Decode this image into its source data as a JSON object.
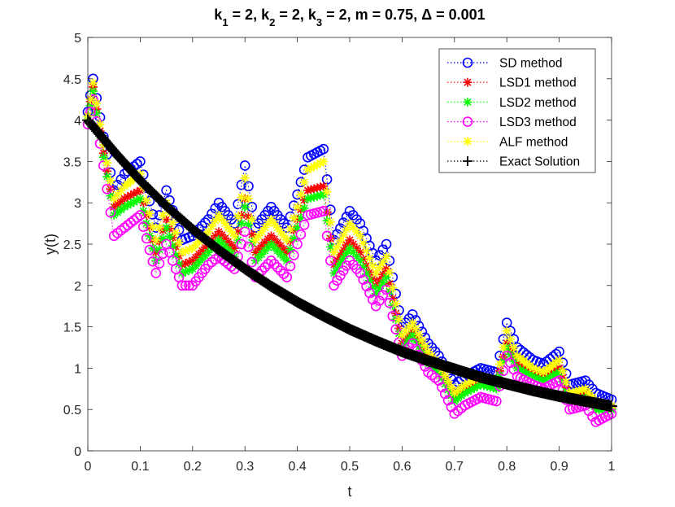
{
  "chart_data": {
    "type": "line",
    "title": {
      "parts": [
        {
          "text": "k",
          "sub": false
        },
        {
          "text": "1",
          "sub": true
        },
        {
          "text": " = 2, k",
          "sub": false
        },
        {
          "text": "2",
          "sub": true
        },
        {
          "text": " = 2, k",
          "sub": false
        },
        {
          "text": "3",
          "sub": true
        },
        {
          "text": " = 2, m = 0.75, Δ = 0.001",
          "sub": false
        }
      ]
    },
    "xlabel": "t",
    "ylabel": "y(t)",
    "xlim": [
      0,
      1
    ],
    "ylim": [
      0,
      5
    ],
    "xticks": [
      0,
      0.1,
      0.2,
      0.3,
      0.4,
      0.5,
      0.6,
      0.7,
      0.8,
      0.9,
      1
    ],
    "xtick_labels": [
      "0",
      "0.1",
      "0.2",
      "0.3",
      "0.4",
      "0.5",
      "0.6",
      "0.7",
      "0.8",
      "0.9",
      "1"
    ],
    "yticks": [
      0,
      0.5,
      1,
      1.5,
      2,
      2.5,
      3,
      3.5,
      4,
      4.5,
      5
    ],
    "ytick_labels": [
      "0",
      "0.5",
      "1",
      "1.5",
      "2",
      "2.5",
      "3",
      "3.5",
      "4",
      "4.5",
      "5"
    ],
    "legend_position": "top-right",
    "series": [
      {
        "name": "SD method",
        "color": "#0000ff",
        "marker": "circle",
        "x": [
          0,
          0.01,
          0.03,
          0.05,
          0.07,
          0.1,
          0.13,
          0.15,
          0.18,
          0.2,
          0.23,
          0.25,
          0.28,
          0.3,
          0.32,
          0.35,
          0.38,
          0.4,
          0.42,
          0.45,
          0.47,
          0.5,
          0.52,
          0.55,
          0.57,
          0.6,
          0.62,
          0.65,
          0.67,
          0.7,
          0.72,
          0.75,
          0.78,
          0.8,
          0.82,
          0.85,
          0.87,
          0.9,
          0.92,
          0.95,
          0.97,
          1
        ],
        "y": [
          4.1,
          4.5,
          3.8,
          3.15,
          3.35,
          3.5,
          2.7,
          3.15,
          2.55,
          2.6,
          2.8,
          3.0,
          2.75,
          3.45,
          2.7,
          2.95,
          2.7,
          3.1,
          3.55,
          3.65,
          2.55,
          2.9,
          2.75,
          2.3,
          2.5,
          1.5,
          1.65,
          1.3,
          1.15,
          0.8,
          0.9,
          1.0,
          0.95,
          1.55,
          1.25,
          1.1,
          1.05,
          1.2,
          0.8,
          0.85,
          0.7,
          0.62
        ]
      },
      {
        "name": "LSD1 method",
        "color": "#ff0000",
        "marker": "star",
        "x": [
          0,
          0.01,
          0.03,
          0.05,
          0.07,
          0.1,
          0.13,
          0.15,
          0.18,
          0.2,
          0.23,
          0.25,
          0.28,
          0.3,
          0.32,
          0.35,
          0.38,
          0.4,
          0.42,
          0.45,
          0.47,
          0.5,
          0.52,
          0.55,
          0.57,
          0.6,
          0.62,
          0.65,
          0.67,
          0.7,
          0.72,
          0.75,
          0.78,
          0.8,
          0.82,
          0.85,
          0.87,
          0.9,
          0.92,
          0.95,
          0.97,
          1
        ],
        "y": [
          4.05,
          4.4,
          3.6,
          2.95,
          3.05,
          3.15,
          2.4,
          2.8,
          2.25,
          2.3,
          2.5,
          2.65,
          2.45,
          3.05,
          2.4,
          2.6,
          2.4,
          2.8,
          3.15,
          3.2,
          2.25,
          2.55,
          2.4,
          2.0,
          2.2,
          1.3,
          1.45,
          1.1,
          1.0,
          0.65,
          0.75,
          0.85,
          0.8,
          1.3,
          1.05,
          0.95,
          0.9,
          1.0,
          0.65,
          0.7,
          0.55,
          0.52
        ]
      },
      {
        "name": "LSD2 method",
        "color": "#00ff00",
        "marker": "star",
        "x": [
          0,
          0.01,
          0.03,
          0.05,
          0.07,
          0.1,
          0.13,
          0.15,
          0.18,
          0.2,
          0.23,
          0.25,
          0.28,
          0.3,
          0.32,
          0.35,
          0.38,
          0.4,
          0.42,
          0.45,
          0.47,
          0.5,
          0.52,
          0.55,
          0.57,
          0.6,
          0.62,
          0.65,
          0.67,
          0.7,
          0.72,
          0.75,
          0.78,
          0.8,
          0.82,
          0.85,
          0.87,
          0.9,
          0.92,
          0.95,
          0.97,
          1
        ],
        "y": [
          4.0,
          4.35,
          3.55,
          2.85,
          2.95,
          3.05,
          2.3,
          2.7,
          2.15,
          2.2,
          2.4,
          2.55,
          2.35,
          2.95,
          2.3,
          2.5,
          2.3,
          2.7,
          3.05,
          3.1,
          2.15,
          2.45,
          2.3,
          1.9,
          2.1,
          1.25,
          1.4,
          1.05,
          0.95,
          0.6,
          0.7,
          0.8,
          0.75,
          1.25,
          1.0,
          0.9,
          0.85,
          0.95,
          0.6,
          0.65,
          0.5,
          0.5
        ]
      },
      {
        "name": "LSD3 method",
        "color": "#ff00ff",
        "marker": "circle",
        "x": [
          0,
          0.01,
          0.03,
          0.05,
          0.07,
          0.1,
          0.13,
          0.15,
          0.18,
          0.2,
          0.23,
          0.25,
          0.28,
          0.3,
          0.32,
          0.35,
          0.38,
          0.4,
          0.42,
          0.45,
          0.47,
          0.5,
          0.52,
          0.55,
          0.57,
          0.6,
          0.62,
          0.65,
          0.67,
          0.7,
          0.72,
          0.75,
          0.78,
          0.8,
          0.82,
          0.85,
          0.87,
          0.9,
          0.92,
          0.95,
          0.97,
          1
        ],
        "y": [
          3.95,
          4.25,
          3.45,
          2.6,
          2.7,
          2.85,
          2.15,
          2.5,
          2.0,
          2.0,
          2.25,
          2.35,
          2.2,
          2.65,
          2.1,
          2.3,
          2.1,
          2.5,
          2.85,
          2.9,
          2.0,
          2.3,
          2.15,
          1.75,
          1.95,
          1.15,
          1.3,
          0.95,
          0.85,
          0.45,
          0.55,
          0.65,
          0.6,
          1.15,
          0.9,
          0.8,
          0.75,
          0.85,
          0.5,
          0.55,
          0.35,
          0.45
        ]
      },
      {
        "name": "ALF method",
        "color": "#ffff00",
        "marker": "star",
        "x": [
          0,
          0.01,
          0.03,
          0.05,
          0.07,
          0.1,
          0.13,
          0.15,
          0.18,
          0.2,
          0.23,
          0.25,
          0.28,
          0.3,
          0.32,
          0.35,
          0.38,
          0.4,
          0.42,
          0.45,
          0.47,
          0.5,
          0.52,
          0.55,
          0.57,
          0.6,
          0.62,
          0.65,
          0.67,
          0.7,
          0.72,
          0.75,
          0.78,
          0.8,
          0.82,
          0.85,
          0.87,
          0.9,
          0.92,
          0.95,
          0.97,
          1
        ],
        "y": [
          4.05,
          4.45,
          3.7,
          3.05,
          3.2,
          3.35,
          2.55,
          3.0,
          2.4,
          2.45,
          2.65,
          2.85,
          2.6,
          3.3,
          2.55,
          2.8,
          2.55,
          2.95,
          3.4,
          3.5,
          2.4,
          2.75,
          2.6,
          2.15,
          2.35,
          1.4,
          1.55,
          1.2,
          1.05,
          0.7,
          0.8,
          0.9,
          0.85,
          1.45,
          1.15,
          1.0,
          0.95,
          1.1,
          0.7,
          0.75,
          0.6,
          0.55
        ]
      },
      {
        "name": "Exact Solution",
        "color": "#000000",
        "marker": "plus",
        "x": [
          0,
          0.05,
          0.1,
          0.15,
          0.2,
          0.25,
          0.3,
          0.35,
          0.4,
          0.45,
          0.5,
          0.55,
          0.6,
          0.65,
          0.7,
          0.75,
          0.8,
          0.85,
          0.9,
          0.95,
          1
        ],
        "y": [
          4.0,
          3.62,
          3.27,
          2.96,
          2.68,
          2.43,
          2.2,
          1.99,
          1.8,
          1.63,
          1.47,
          1.33,
          1.2,
          1.09,
          0.99,
          0.89,
          0.81,
          0.73,
          0.66,
          0.6,
          0.54
        ]
      }
    ]
  }
}
